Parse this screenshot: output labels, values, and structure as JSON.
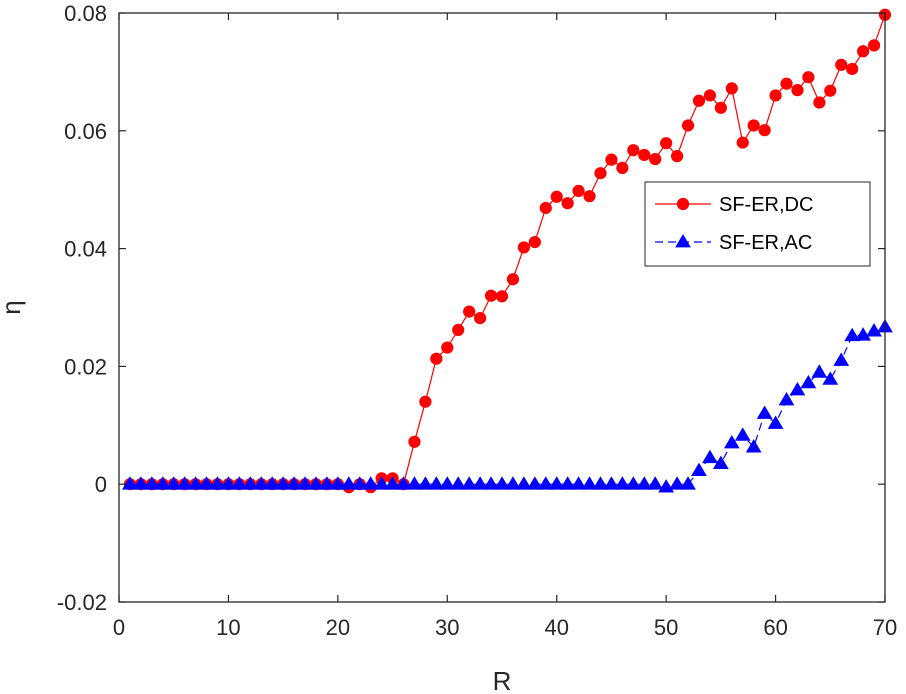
{
  "chart_data": {
    "type": "line",
    "title": "",
    "xlabel": "R",
    "ylabel": "η",
    "xlim": [
      0,
      70
    ],
    "ylim": [
      -0.02,
      0.08
    ],
    "xticks": [
      0,
      10,
      20,
      30,
      40,
      50,
      60,
      70
    ],
    "yticks": [
      -0.02,
      0,
      0.02,
      0.04,
      0.06,
      0.08
    ],
    "xtick_labels": [
      "0",
      "10",
      "20",
      "30",
      "40",
      "50",
      "60",
      "70"
    ],
    "ytick_labels": [
      "-0.02",
      "0",
      "0.02",
      "0.04",
      "0.06",
      "0.08"
    ],
    "grid": false,
    "legend_position": "right",
    "series": [
      {
        "name": "SF-ER,DC",
        "color": "#ff0000",
        "marker": "circle",
        "line_style": "solid",
        "x": [
          1,
          2,
          3,
          4,
          5,
          6,
          7,
          8,
          9,
          10,
          11,
          12,
          13,
          14,
          15,
          16,
          17,
          18,
          19,
          20,
          21,
          22,
          23,
          24,
          25,
          26,
          27,
          28,
          29,
          30,
          31,
          32,
          33,
          34,
          35,
          36,
          37,
          38,
          39,
          40,
          41,
          42,
          43,
          44,
          45,
          46,
          47,
          48,
          49,
          50,
          51,
          52,
          53,
          54,
          55,
          56,
          57,
          58,
          59,
          60,
          61,
          62,
          63,
          64,
          65,
          66,
          67,
          68,
          69,
          70
        ],
        "values": [
          0,
          0,
          0,
          0,
          0,
          0,
          0,
          0,
          0,
          0,
          0,
          0,
          0,
          0,
          0,
          0,
          0,
          0,
          0,
          0,
          -0.0005,
          0,
          -0.0005,
          0.001,
          0.001,
          0,
          0.0072,
          0.014,
          0.0213,
          0.0232,
          0.0262,
          0.0293,
          0.0282,
          0.032,
          0.0319,
          0.0348,
          0.0402,
          0.0411,
          0.0469,
          0.0488,
          0.0477,
          0.0498,
          0.0489,
          0.0528,
          0.0551,
          0.0537,
          0.0567,
          0.0559,
          0.0552,
          0.0579,
          0.0557,
          0.0609,
          0.0651,
          0.066,
          0.0639,
          0.0672,
          0.058,
          0.0609,
          0.0601,
          0.066,
          0.068,
          0.0669,
          0.0691,
          0.0648,
          0.0668,
          0.0712,
          0.0705,
          0.0735,
          0.0745,
          0.0797
        ]
      },
      {
        "name": "SF-ER,AC",
        "color": "#0000ff",
        "marker": "triangle",
        "line_style": "dashed",
        "x": [
          1,
          2,
          3,
          4,
          5,
          6,
          7,
          8,
          9,
          10,
          11,
          12,
          13,
          14,
          15,
          16,
          17,
          18,
          19,
          20,
          21,
          22,
          23,
          24,
          25,
          26,
          27,
          28,
          29,
          30,
          31,
          32,
          33,
          34,
          35,
          36,
          37,
          38,
          39,
          40,
          41,
          42,
          43,
          44,
          45,
          46,
          47,
          48,
          49,
          50,
          51,
          52,
          53,
          54,
          55,
          56,
          57,
          58,
          59,
          60,
          61,
          62,
          63,
          64,
          65,
          66,
          67,
          68,
          69,
          70
        ],
        "values": [
          0,
          0,
          0,
          0,
          0,
          0,
          0,
          0,
          0,
          0,
          0,
          0,
          0,
          0,
          0,
          0,
          0,
          0,
          0,
          0,
          0,
          0,
          0,
          0,
          0,
          0,
          0,
          0,
          0,
          0,
          0,
          0,
          0,
          0,
          0,
          0,
          0,
          0,
          0,
          0,
          0,
          0,
          0,
          0,
          0,
          0,
          0,
          0,
          0,
          -0.0005,
          0,
          0,
          0.0023,
          0.0045,
          0.0035,
          0.007,
          0.0083,
          0.0063,
          0.012,
          0.0103,
          0.0143,
          0.016,
          0.0172,
          0.019,
          0.0178,
          0.021,
          0.0252,
          0.0253,
          0.026,
          0.0267
        ]
      }
    ]
  }
}
